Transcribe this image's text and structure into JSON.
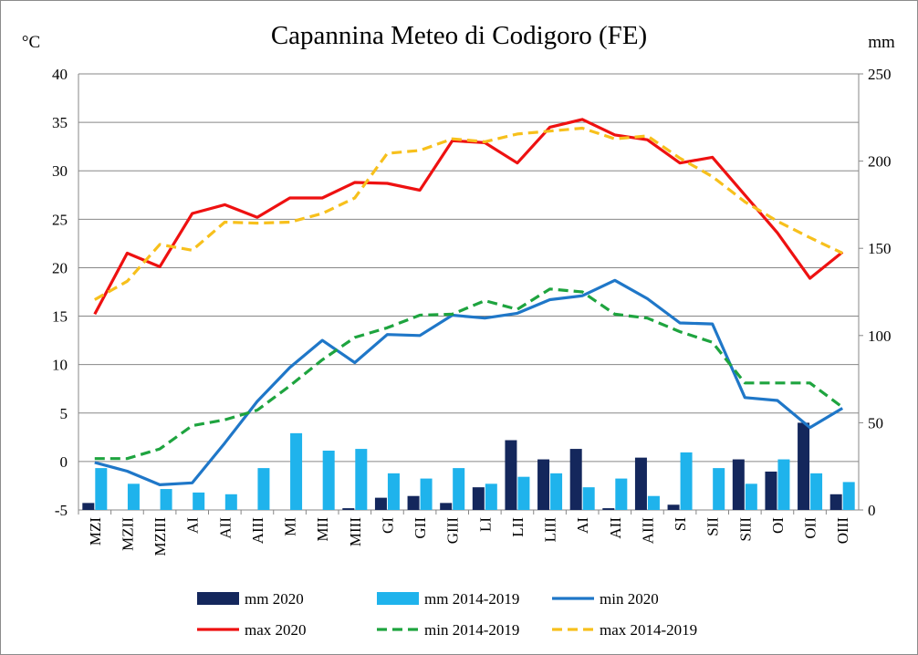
{
  "chart_data": {
    "type": "bar",
    "title": "Capannina Meteo di Codigoro (FE)",
    "y_left_unit": "°C",
    "y_right_unit": "mm",
    "y_left_range": [
      -5,
      40
    ],
    "y_left_ticks": [
      "40",
      "35",
      "30",
      "25",
      "20",
      "15",
      "10",
      "5",
      "0",
      "-5"
    ],
    "y_right_range": [
      0,
      250
    ],
    "y_right_ticks": [
      "250",
      "200",
      "150",
      "100",
      "50",
      "0"
    ],
    "grid": true,
    "legend_position": "bottom",
    "categories": [
      "MZI",
      "MZII",
      "MZIII",
      "AI",
      "AII",
      "AIII",
      "MI",
      "MII",
      "MIII",
      "GI",
      "GII",
      "GIII",
      "LI",
      "LII",
      "LIII",
      "AI",
      "AII",
      "AIII",
      "SI",
      "SII",
      "SIII",
      "OI",
      "OII",
      "OIII"
    ],
    "series": [
      {
        "name": "mm 2020",
        "kind": "bar",
        "axis": "right",
        "color": "#14275c",
        "values": [
          4,
          0,
          0,
          0,
          0,
          0,
          0,
          0,
          1,
          7,
          8,
          4,
          13,
          40,
          29,
          35,
          1,
          30,
          3,
          0,
          29,
          22,
          50,
          9
        ]
      },
      {
        "name": "mm 2014-2019",
        "kind": "bar",
        "axis": "right",
        "color": "#1fb3ec",
        "values": [
          24,
          15,
          12,
          10,
          9,
          24,
          44,
          34,
          35,
          21,
          18,
          24,
          15,
          19,
          21,
          13,
          18,
          8,
          33,
          24,
          15,
          29,
          21,
          16
        ]
      },
      {
        "name": "min 2020",
        "kind": "line",
        "axis": "left",
        "color": "#1f77c8",
        "dash": false,
        "values": [
          -0.1,
          -1,
          -2.4,
          -2.2,
          1.9,
          6.2,
          9.7,
          12.5,
          10.2,
          13.1,
          13,
          15.1,
          14.8,
          15.3,
          16.7,
          17.1,
          18.7,
          16.8,
          14.3,
          14.2,
          6.6,
          6.3,
          3.5,
          5.5
        ]
      },
      {
        "name": "max 2020",
        "kind": "line",
        "axis": "left",
        "color": "#ee1111",
        "dash": false,
        "values": [
          15.2,
          21.5,
          20.1,
          25.6,
          26.5,
          25.2,
          27.2,
          27.2,
          28.8,
          28.7,
          28,
          33.1,
          32.9,
          30.8,
          34.5,
          35.3,
          33.7,
          33.2,
          30.8,
          31.4,
          27.5,
          23.6,
          18.9,
          21.6
        ]
      },
      {
        "name": "min 2014-2019",
        "kind": "line",
        "axis": "left",
        "color": "#1ea43f",
        "dash": true,
        "values": [
          0.3,
          0.3,
          1.3,
          3.7,
          4.3,
          5.3,
          7.8,
          10.5,
          12.8,
          13.8,
          15.1,
          15.2,
          16.6,
          15.7,
          17.8,
          17.5,
          15.2,
          14.8,
          13.4,
          12.3,
          8.1,
          8.1,
          8.1,
          5.6
        ]
      },
      {
        "name": "max 2014-2019",
        "kind": "line",
        "axis": "left",
        "color": "#f7c01c",
        "dash": true,
        "values": [
          16.7,
          18.6,
          22.4,
          21.8,
          24.7,
          24.6,
          24.7,
          25.6,
          27.2,
          31.8,
          32.1,
          33.3,
          33,
          33.8,
          34.1,
          34.4,
          33.3,
          33.6,
          31.3,
          29.4,
          26.8,
          24.8,
          23.1,
          21.5
        ]
      }
    ],
    "legend": [
      {
        "label": "mm 2020",
        "kind": "bar",
        "color": "#14275c"
      },
      {
        "label": "mm 2014-2019",
        "kind": "bar",
        "color": "#1fb3ec"
      },
      {
        "label": "min 2020",
        "kind": "line",
        "color": "#1f77c8",
        "dash": false
      },
      {
        "label": "max 2020",
        "kind": "line",
        "color": "#ee1111",
        "dash": false
      },
      {
        "label": "min 2014-2019",
        "kind": "line",
        "color": "#1ea43f",
        "dash": true
      },
      {
        "label": "max 2014-2019",
        "kind": "line",
        "color": "#f7c01c",
        "dash": true
      }
    ]
  }
}
